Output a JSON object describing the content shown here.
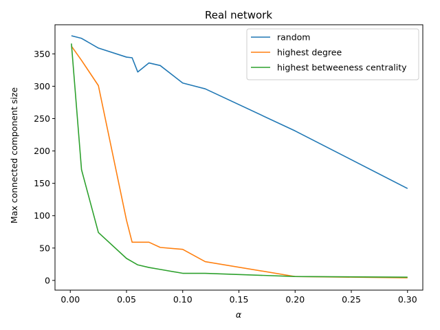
{
  "chart_data": {
    "type": "line",
    "title": "Real network",
    "xlabel": "α",
    "ylabel": "Max connected component size",
    "xlim": [
      -0.0136,
      0.3136
    ],
    "ylim": [
      -15,
      395
    ],
    "xticks": [
      0.0,
      0.05,
      0.1,
      0.15,
      0.2,
      0.25,
      0.3
    ],
    "xtick_labels": [
      "0.00",
      "0.05",
      "0.10",
      "0.15",
      "0.20",
      "0.25",
      "0.30"
    ],
    "yticks": [
      0,
      50,
      100,
      150,
      200,
      250,
      300,
      350
    ],
    "ytick_labels": [
      "0",
      "50",
      "100",
      "150",
      "200",
      "250",
      "300",
      "350"
    ],
    "grid": false,
    "legend_position": "top-right",
    "series": [
      {
        "name": "random",
        "color": "#1f77b4",
        "x": [
          0.001,
          0.01,
          0.025,
          0.05,
          0.055,
          0.06,
          0.07,
          0.08,
          0.1,
          0.12,
          0.2,
          0.3
        ],
        "y": [
          378,
          374,
          359,
          345,
          344,
          322,
          336,
          332,
          305,
          296,
          231,
          142
        ]
      },
      {
        "name": "highest degree",
        "color": "#ff7f0e",
        "x": [
          0.001,
          0.01,
          0.025,
          0.05,
          0.055,
          0.06,
          0.07,
          0.08,
          0.1,
          0.12,
          0.2,
          0.3
        ],
        "y": [
          362,
          340,
          301,
          93,
          59,
          59,
          59,
          51,
          48,
          29,
          6,
          4
        ]
      },
      {
        "name": "highest betweeness centrality",
        "color": "#2ca02c",
        "x": [
          0.001,
          0.01,
          0.025,
          0.05,
          0.055,
          0.06,
          0.07,
          0.08,
          0.1,
          0.12,
          0.2,
          0.3
        ],
        "y": [
          366,
          171,
          74,
          34,
          29,
          24,
          20,
          17,
          11,
          11,
          6,
          5
        ]
      }
    ]
  }
}
